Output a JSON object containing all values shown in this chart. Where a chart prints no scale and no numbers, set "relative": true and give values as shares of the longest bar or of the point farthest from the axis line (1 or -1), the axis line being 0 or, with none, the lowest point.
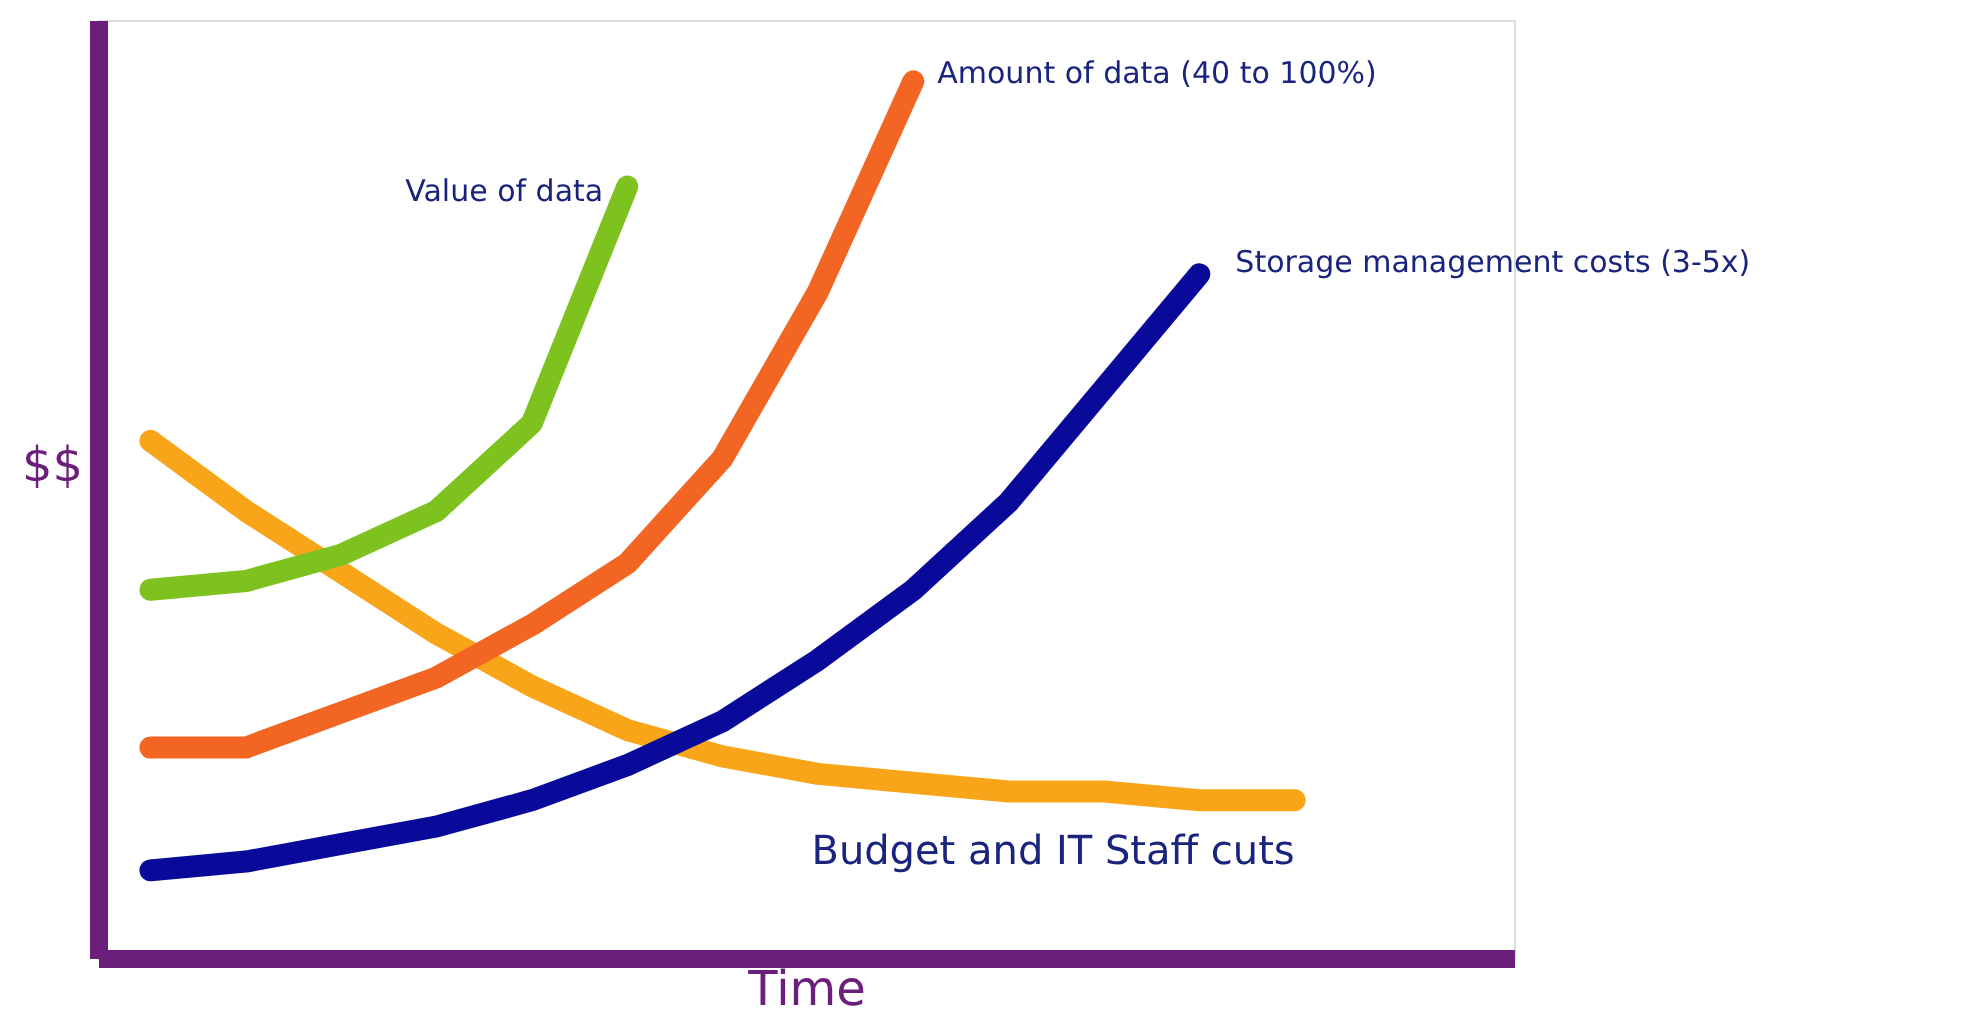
{
  "chart_data": {
    "type": "line",
    "relative": true,
    "xlabel": "Time",
    "ylabel": "$$",
    "grid": false,
    "line_style": "solid",
    "categories": [
      null,
      null,
      null,
      null,
      null,
      null,
      null,
      null,
      null,
      null,
      null,
      null,
      null,
      null,
      null
    ],
    "series": [
      {
        "name": "Budget and IT Staff cuts",
        "color": "#f9a51a",
        "values": [
          0.59,
          0.51,
          0.44,
          0.37,
          0.31,
          0.26,
          0.23,
          0.21,
          0.2,
          0.19,
          0.19,
          0.18,
          0.18,
          null,
          null
        ]
      },
      {
        "name": "Storage management costs (3-5x)",
        "color": "#0a0a9a",
        "values": [
          0.1,
          0.11,
          0.13,
          0.15,
          0.18,
          0.22,
          0.27,
          0.34,
          0.42,
          0.52,
          0.65,
          0.78,
          null,
          null,
          null
        ]
      },
      {
        "name": "Amount of data (40 to 100%)",
        "color": "#f26522",
        "values": [
          0.24,
          0.24,
          0.28,
          0.32,
          0.38,
          0.45,
          0.57,
          0.76,
          1,
          null,
          null,
          null,
          null,
          null,
          null
        ]
      },
      {
        "name": "Value of data",
        "color": "#7dc21e",
        "values": [
          0.42,
          0.43,
          0.46,
          0.51,
          0.61,
          0.88,
          null,
          null,
          null,
          null,
          null,
          null,
          null,
          null,
          null
        ]
      }
    ]
  }
}
